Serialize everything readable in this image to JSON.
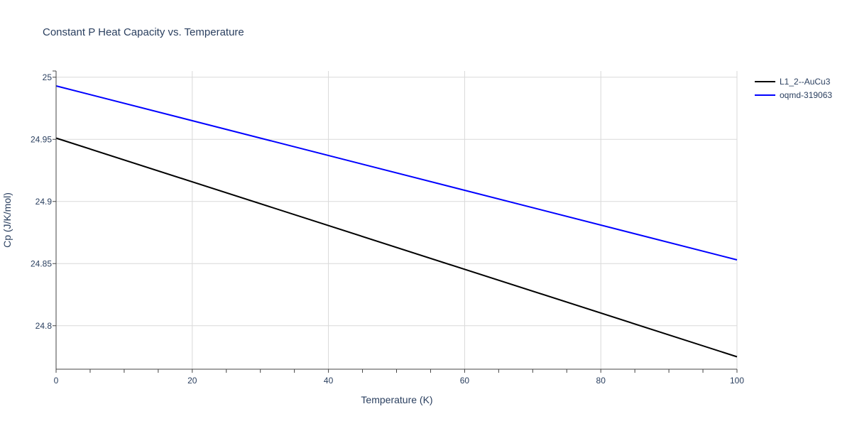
{
  "chart_data": {
    "type": "line",
    "title": "Constant P Heat Capacity vs. Temperature",
    "xlabel": "Temperature (K)",
    "ylabel": "Cp (J/K/mol)",
    "xlim": [
      0,
      100
    ],
    "ylim": [
      24.765,
      25.005
    ],
    "xticks": [
      0,
      20,
      40,
      60,
      80,
      100
    ],
    "xtick_labels": [
      "0",
      "20",
      "40",
      "60",
      "80",
      "100"
    ],
    "yticks": [
      24.8,
      24.85,
      24.9,
      24.95,
      25
    ],
    "ytick_labels": [
      "24.8",
      "24.85",
      "24.9",
      "24.95",
      "25"
    ],
    "x_minor_step": 5,
    "grid": true,
    "legend_position": "top-right",
    "series": [
      {
        "name": "L1_2--AuCu3",
        "color": "#000000",
        "x": [
          0,
          100
        ],
        "y": [
          24.951,
          24.775
        ]
      },
      {
        "name": "oqmd-319063",
        "color": "#0000ff",
        "x": [
          0,
          100
        ],
        "y": [
          24.993,
          24.853
        ]
      }
    ]
  }
}
